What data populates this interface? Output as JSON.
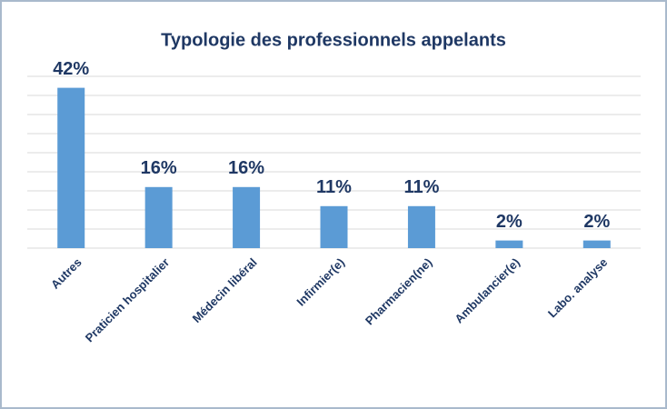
{
  "chart_data": {
    "type": "bar",
    "title": "Typologie des professionnels appelants",
    "categories": [
      "Autres",
      "Praticien hospitalier",
      "Médecin libéral",
      "Infirmier(e)",
      "Pharmacien(ne)",
      "Ambulancier(e)",
      "Labo. analyse"
    ],
    "values": [
      42,
      16,
      16,
      11,
      11,
      2,
      2
    ],
    "value_labels": [
      "42%",
      "16%",
      "16%",
      "11%",
      "11%",
      "2%",
      "2%"
    ],
    "color": "#5b9bd5",
    "ylim": [
      0,
      45
    ],
    "yticks": [
      0,
      5,
      10,
      15,
      20,
      25,
      30,
      35,
      40,
      45
    ],
    "grid": true
  }
}
